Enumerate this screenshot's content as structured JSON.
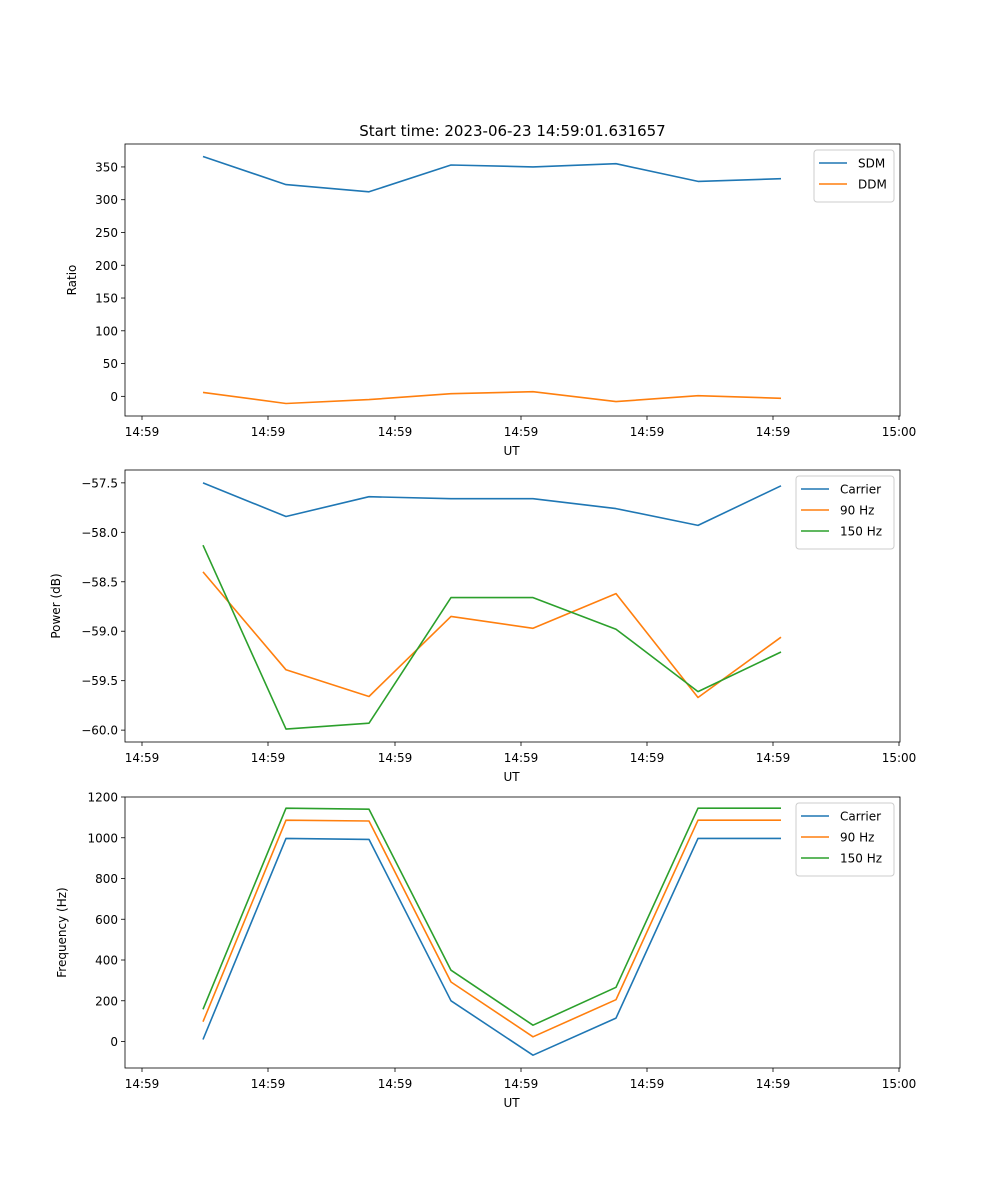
{
  "chart_data": [
    {
      "type": "line",
      "title": "Start time: 2023-06-23 14:59:01.631657",
      "xlabel": "UT",
      "ylabel": "Ratio",
      "x_tick_labels": [
        "14:59",
        "14:59",
        "14:59",
        "14:59",
        "14:59",
        "14:59",
        "14:59",
        "15:00"
      ],
      "y_ticks": [
        0,
        50,
        100,
        150,
        200,
        250,
        300,
        350
      ],
      "ylim": [
        -30,
        385
      ],
      "legend": "top-right",
      "series": [
        {
          "name": "SDM",
          "color": "#1f77b4",
          "values": [
            366,
            323,
            312,
            353,
            350,
            355,
            328,
            332
          ]
        },
        {
          "name": "DDM",
          "color": "#ff7f0e",
          "values": [
            6,
            -11,
            -5,
            4,
            7,
            -8,
            1,
            -3
          ]
        }
      ]
    },
    {
      "type": "line",
      "title": "",
      "xlabel": "UT",
      "ylabel": "Power (dB)",
      "x_tick_labels": [
        "14:59",
        "14:59",
        "14:59",
        "14:59",
        "14:59",
        "14:59",
        "14:59",
        "15:00"
      ],
      "y_ticks": [
        -60.0,
        -59.5,
        -59.0,
        -58.5,
        -58.0,
        -57.5
      ],
      "y_tick_labels": [
        "−60.0",
        "−59.5",
        "−59.0",
        "−58.5",
        "−58.0",
        "−57.5"
      ],
      "ylim": [
        -60.12,
        -57.37
      ],
      "legend": "top-right",
      "series": [
        {
          "name": "Carrier",
          "color": "#1f77b4",
          "values": [
            -57.5,
            -57.84,
            -57.64,
            -57.66,
            -57.66,
            -57.76,
            -57.93,
            -57.53
          ]
        },
        {
          "name": "90 Hz",
          "color": "#ff7f0e",
          "values": [
            -58.4,
            -59.39,
            -59.66,
            -58.85,
            -58.97,
            -58.62,
            -59.67,
            -59.06
          ]
        },
        {
          "name": "150 Hz",
          "color": "#2ca02c",
          "values": [
            -58.13,
            -59.99,
            -59.93,
            -58.66,
            -58.66,
            -58.98,
            -59.61,
            -59.21
          ]
        }
      ]
    },
    {
      "type": "line",
      "title": "",
      "xlabel": "UT",
      "ylabel": "Frequency (Hz)",
      "x_tick_labels": [
        "14:59",
        "14:59",
        "14:59",
        "14:59",
        "14:59",
        "14:59",
        "14:59",
        "15:00"
      ],
      "y_ticks": [
        0,
        200,
        400,
        600,
        800,
        1000,
        1200
      ],
      "ylim": [
        -130,
        1200
      ],
      "legend": "top-right",
      "series": [
        {
          "name": "Carrier",
          "color": "#1f77b4",
          "values": [
            10,
            997,
            992,
            200,
            -67,
            115,
            997,
            997
          ]
        },
        {
          "name": "90 Hz",
          "color": "#ff7f0e",
          "values": [
            97,
            1086,
            1082,
            292,
            23,
            205,
            1086,
            1086
          ]
        },
        {
          "name": "150 Hz",
          "color": "#2ca02c",
          "values": [
            158,
            1145,
            1140,
            350,
            80,
            266,
            1145,
            1145
          ]
        }
      ]
    }
  ]
}
